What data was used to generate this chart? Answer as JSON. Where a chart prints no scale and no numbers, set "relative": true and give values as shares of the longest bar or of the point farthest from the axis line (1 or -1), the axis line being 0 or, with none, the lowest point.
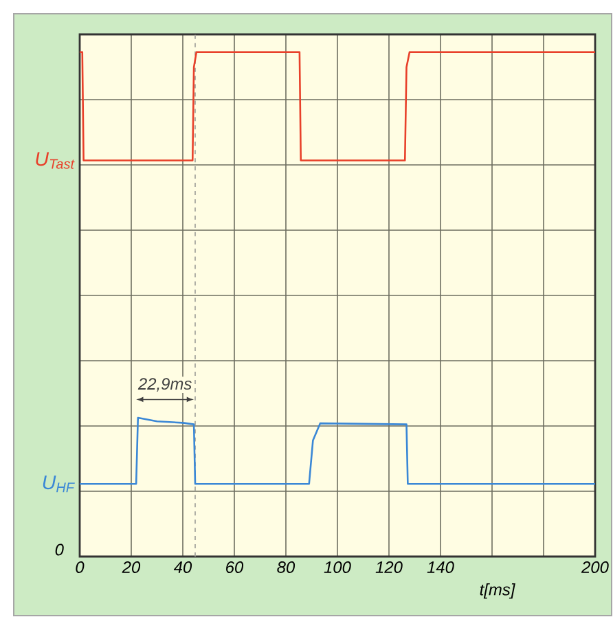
{
  "chart_data": {
    "type": "line",
    "relative": true,
    "xlabel": "t[ms]",
    "xlim": [
      0,
      200
    ],
    "xticks": [
      0,
      20,
      40,
      60,
      80,
      100,
      120,
      140,
      {
        "value": 160,
        "label": null
      },
      {
        "value": 180,
        "label": null
      },
      200
    ],
    "grid": true,
    "series": [
      {
        "name": "U$_{Tast}$",
        "color": "#e8402a",
        "x": [
          0,
          1,
          1.5,
          43.8,
          44.3,
          45.3,
          85.3,
          85.8,
          126.2,
          126.8,
          128,
          200
        ],
        "values": [
          1.0,
          1.0,
          0.785,
          0.785,
          0.97,
          1.0,
          1.0,
          0.785,
          0.785,
          0.97,
          1.0,
          1.0
        ]
      },
      {
        "name": "U$_{HF}$",
        "color": "#3a87d6",
        "x": [
          0,
          21.9,
          22.6,
          30,
          40,
          44.3,
          44.8,
          89,
          90.5,
          93.3,
          110,
          126.8,
          127.3,
          200
        ],
        "values": [
          0.144,
          0.144,
          0.275,
          0.268,
          0.265,
          0.262,
          0.144,
          0.144,
          0.23,
          0.264,
          0.263,
          0.262,
          0.144,
          0.144
        ]
      }
    ],
    "ref_lines": [
      {
        "axis": "x",
        "value": 44.8,
        "color": "#a8a8a0",
        "line_style": "dashed"
      }
    ],
    "annotations": [
      "22,9ms",
      "0"
    ]
  }
}
